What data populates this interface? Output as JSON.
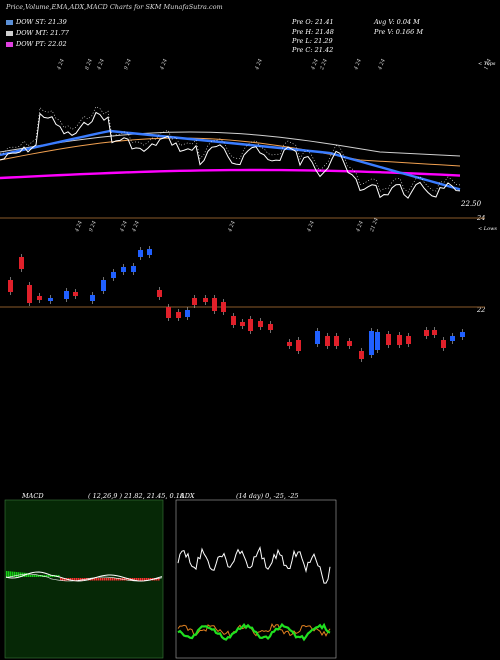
{
  "header": {
    "title": "Price,Volume,EMA,ADX,MACD Charts for SKM MunafaSutra.com",
    "dow_st": "DOW ST: 21.39",
    "dow_mt": "DOW MT: 21.77",
    "dow_pt": "DOW PT: 22.02",
    "pre_o": "Pre  O: 21.41",
    "pre_h": "Pre  H: 21.48",
    "pre_l": "Pre  L: 21.29",
    "pre_c": "Pre  C: 21.42",
    "avg_v": "Avg V: 0.04  M",
    "pre_v": "Pre  V: 0.166  M"
  },
  "colors": {
    "dow_st": "#5a8fd6",
    "dow_mt": "#cfcfcf",
    "dow_pt": "#e040e0",
    "up": "#2060ff",
    "down": "#e0202a",
    "macd_bg": "#062806",
    "adx_bg": "#000000"
  },
  "chart_data": [
    {
      "type": "line",
      "name": "price-ema",
      "right_labels": {
        "price": "22.50",
        "top_tag": "< Tops"
      },
      "ema_colors": [
        "#3a7cff",
        "#d0d0d0",
        "#ff00ff",
        "#f0a050",
        "#ffffff"
      ],
      "date_labels": [
        "4 24",
        "8 24",
        "4 24",
        "9 24",
        "4 24",
        "4 24",
        "4 24",
        "2 24",
        "4 24",
        "4 24",
        "1 24"
      ]
    },
    {
      "type": "bar",
      "name": "candles",
      "right_labels": {
        "upper": "24",
        "mid": "22",
        "tag": "< Lows"
      },
      "date_labels": [
        "4 24",
        "9 24",
        "4 24",
        "4 24",
        "4 24",
        "4 24",
        "4 24",
        "21 24"
      ]
    },
    {
      "type": "line",
      "name": "macd",
      "title": "MACD",
      "params": "( 12,26,9 ) 21.82,  21.45,  0.18"
    },
    {
      "type": "line",
      "name": "adx",
      "title": "ADX",
      "params": "(14  day) 0,  -25,  -25"
    }
  ]
}
